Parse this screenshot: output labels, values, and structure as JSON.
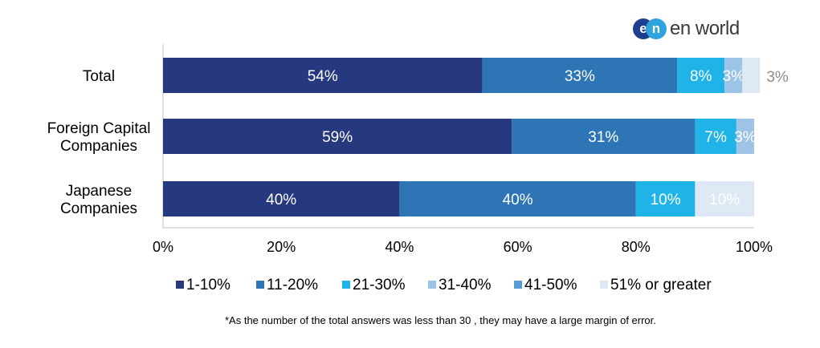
{
  "brand": {
    "logo_letters": [
      "e",
      "n"
    ],
    "name": "en world"
  },
  "footnote": "*As the number of the total answers was less than 30 , they may have a large margin of error.",
  "chart_data": {
    "type": "bar",
    "orientation": "horizontal",
    "stacked": true,
    "categories": [
      "Total",
      "Foreign Capital Companies",
      "Japanese Companies"
    ],
    "category_lines": [
      [
        "Total"
      ],
      [
        "Foreign Capital",
        "Companies"
      ],
      [
        "Japanese",
        "Companies"
      ]
    ],
    "series": [
      {
        "name": "1-10%",
        "color": "#26387e",
        "label_color": "#ffffff",
        "values": [
          54,
          59,
          40
        ]
      },
      {
        "name": "11-20%",
        "color": "#2e75b6",
        "label_color": "#ffffff",
        "values": [
          33,
          31,
          40
        ]
      },
      {
        "name": "21-30%",
        "color": "#1fb3e8",
        "label_color": "#ffffff",
        "values": [
          8,
          7,
          10
        ]
      },
      {
        "name": "31-40%",
        "color": "#9dc3e6",
        "label_color": "#ffffff",
        "values": [
          3,
          3,
          0
        ]
      },
      {
        "name": "41-50%",
        "color": "#5b9bd5",
        "label_color": "#ffffff",
        "values": [
          0,
          0,
          0
        ]
      },
      {
        "name": "51% or greater",
        "color": "#dee9f5",
        "label_color": "#ffffff",
        "values": [
          3,
          0,
          10
        ]
      }
    ],
    "value_labels": [
      [
        "54%",
        "59%",
        "40%"
      ],
      [
        "33%",
        "31%",
        "40%"
      ],
      [
        "8%",
        "7%",
        "10%"
      ],
      [
        "3%",
        "3%",
        ""
      ],
      [
        "",
        "",
        ""
      ],
      [
        "3%",
        "",
        "10%"
      ]
    ],
    "outside_label": {
      "series": 5,
      "category": 0,
      "color": "#8c8c8c"
    },
    "xlim": [
      0,
      100
    ],
    "x_ticks": [
      0,
      20,
      40,
      60,
      80,
      100
    ],
    "x_tick_labels": [
      "0%",
      "20%",
      "40%",
      "60%",
      "80%",
      "100%"
    ],
    "grid": false,
    "legend_position": "bottom"
  }
}
